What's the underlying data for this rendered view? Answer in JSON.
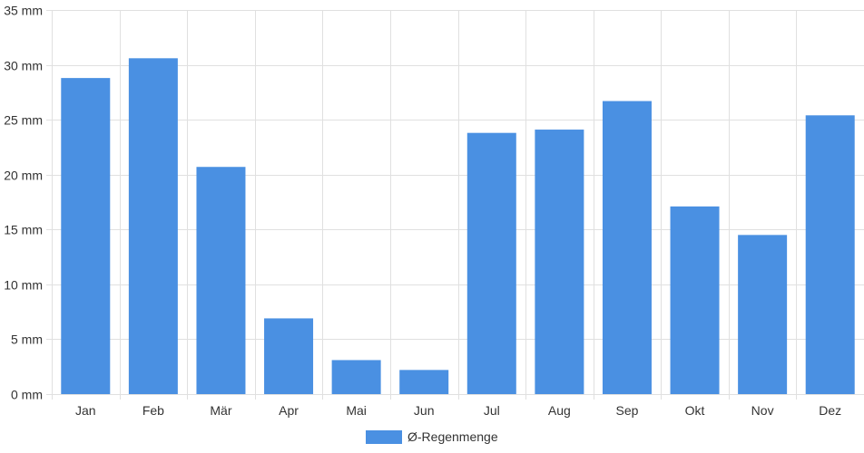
{
  "chart_data": {
    "type": "bar",
    "categories": [
      "Jan",
      "Feb",
      "Mär",
      "Apr",
      "Mai",
      "Jun",
      "Jul",
      "Aug",
      "Sep",
      "Okt",
      "Nov",
      "Dez"
    ],
    "series": [
      {
        "name": "Ø-Regenmenge",
        "values": [
          28.8,
          30.6,
          20.7,
          6.9,
          3.1,
          2.2,
          23.8,
          24.1,
          26.7,
          17.1,
          14.5,
          25.4
        ],
        "color": "#4a90e2"
      }
    ],
    "ylim": [
      0,
      35
    ],
    "y_ticks": [
      0,
      5,
      10,
      15,
      20,
      25,
      30,
      35
    ],
    "y_unit": "mm",
    "grid": true,
    "legend_position": "bottom-center"
  }
}
